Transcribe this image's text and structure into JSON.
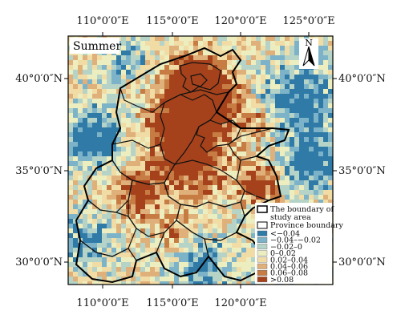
{
  "map": {
    "panel_label": "Summer",
    "north_label": "N",
    "top_ticks": [
      "110°0′0″E",
      "115°0′0″E",
      "120°0′0″E",
      "125°0′0″E"
    ],
    "bottom_ticks": [
      "110°0′0″E",
      "115°0′0″E",
      "120°0′0″E"
    ],
    "left_ticks": [
      "40°0′0″N",
      "35°0′0″N",
      "30°0′0″N"
    ],
    "right_ticks": [
      "40°0′0″N",
      "35°0′0″N",
      "30°0′0″N"
    ],
    "legend": {
      "boundary_study_area_line1": "The boundary of",
      "boundary_study_area_line2": "study area",
      "province_boundary": "Province boundary",
      "classes": [
        {
          "label": "<−0.04",
          "color": "#2f7aa6"
        },
        {
          "label": "−0.04–−0.02",
          "color": "#7db3c8"
        },
        {
          "label": "−0.02–0",
          "color": "#b5d3c6"
        },
        {
          "label": "0–0.02",
          "color": "#edeec0"
        },
        {
          "label": "0.02–0.04",
          "color": "#f1dca6"
        },
        {
          "label": "0.04–0.06",
          "color": "#dfb07a"
        },
        {
          "label": "0.06–0.08",
          "color": "#c77c44"
        },
        {
          "label": ">0.08",
          "color": "#a5421c"
        }
      ]
    }
  }
}
